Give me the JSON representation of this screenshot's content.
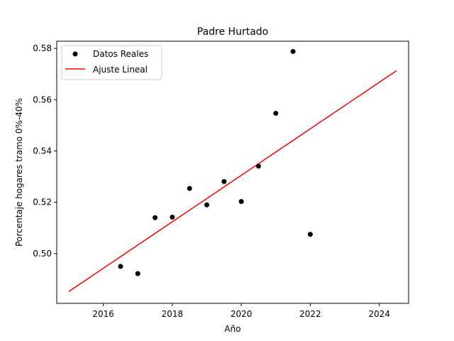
{
  "chart_data": {
    "type": "scatter",
    "title": "Padre Hurtado",
    "xlabel": "Año",
    "ylabel": "Porcentaje hogares tramo 0%-40%",
    "xlim": [
      2014.65,
      2024.85
    ],
    "ylim": [
      0.4806,
      0.5828
    ],
    "xticks": [
      2016,
      2018,
      2020,
      2022,
      2024
    ],
    "yticks": [
      0.5,
      0.52,
      0.54,
      0.56,
      0.58
    ],
    "xtick_labels": [
      "2016",
      "2018",
      "2020",
      "2022",
      "2024"
    ],
    "ytick_labels": [
      "0.50",
      "0.52",
      "0.54",
      "0.56",
      "0.58"
    ],
    "grid": false,
    "legend_position": "top-left",
    "series": [
      {
        "name": "Datos Reales",
        "kind": "scatter",
        "color": "#000000",
        "points": [
          {
            "x": 2016.5,
            "y": 0.495
          },
          {
            "x": 2017.0,
            "y": 0.4922
          },
          {
            "x": 2017.5,
            "y": 0.514
          },
          {
            "x": 2018.0,
            "y": 0.5142
          },
          {
            "x": 2018.5,
            "y": 0.5254
          },
          {
            "x": 2019.0,
            "y": 0.519
          },
          {
            "x": 2019.5,
            "y": 0.5281
          },
          {
            "x": 2020.0,
            "y": 0.5203
          },
          {
            "x": 2020.5,
            "y": 0.5341
          },
          {
            "x": 2021.0,
            "y": 0.5547
          },
          {
            "x": 2021.5,
            "y": 0.5788
          },
          {
            "x": 2022.0,
            "y": 0.5075
          }
        ]
      },
      {
        "name": "Ajuste Lineal",
        "kind": "line",
        "color": "#ff0000",
        "points": [
          {
            "x": 2015.0,
            "y": 0.4852
          },
          {
            "x": 2024.5,
            "y": 0.5713
          }
        ]
      }
    ]
  }
}
